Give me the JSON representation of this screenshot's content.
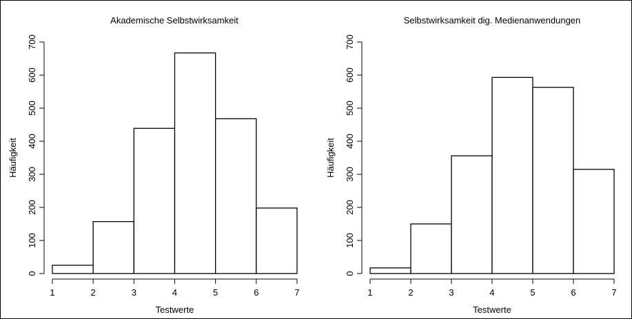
{
  "chart_data": [
    {
      "type": "bar",
      "histogram": true,
      "title": "Akademische Selbstwirksamkeit",
      "xlabel": "Testwerte",
      "ylabel": "Häufigkeit",
      "bins": [
        [
          1,
          2
        ],
        [
          2,
          3
        ],
        [
          3,
          4
        ],
        [
          4,
          5
        ],
        [
          5,
          6
        ],
        [
          6,
          7
        ]
      ],
      "values": [
        25,
        157,
        439,
        667,
        468,
        198
      ],
      "xlim": [
        1,
        7
      ],
      "ylim": [
        0,
        700
      ],
      "x_ticks": [
        1,
        2,
        3,
        4,
        5,
        6,
        7
      ],
      "y_ticks": [
        0,
        100,
        200,
        300,
        400,
        500,
        600,
        700
      ],
      "grid": false
    },
    {
      "type": "bar",
      "histogram": true,
      "title": "Selbstwirksamkeit dig. Medienanwendungen",
      "xlabel": "Testwerte",
      "ylabel": "Häufigkeit",
      "bins": [
        [
          1,
          2
        ],
        [
          2,
          3
        ],
        [
          3,
          4
        ],
        [
          4,
          5
        ],
        [
          5,
          6
        ],
        [
          6,
          7
        ]
      ],
      "values": [
        17,
        150,
        356,
        593,
        563,
        315
      ],
      "xlim": [
        1,
        7
      ],
      "ylim": [
        0,
        700
      ],
      "x_ticks": [
        1,
        2,
        3,
        4,
        5,
        6,
        7
      ],
      "y_ticks": [
        0,
        100,
        200,
        300,
        400,
        500,
        600,
        700
      ],
      "grid": false
    }
  ]
}
